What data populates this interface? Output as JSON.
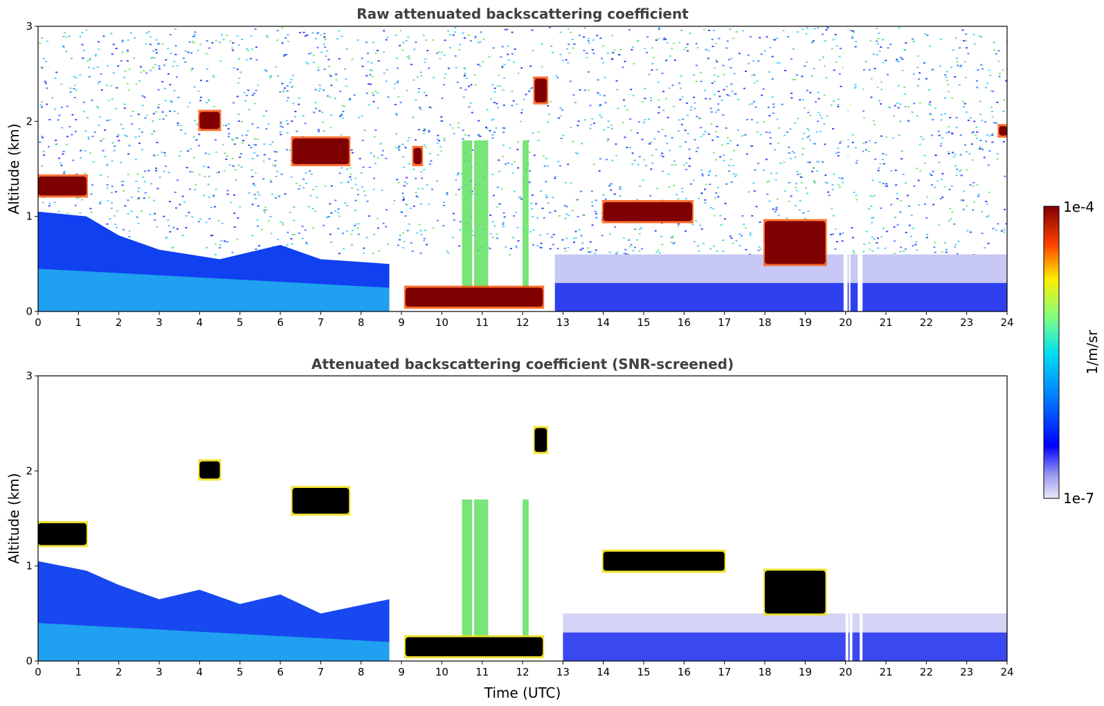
{
  "chart_data": [
    {
      "type": "heatmap",
      "title": "Raw attenuated backscattering coefficient",
      "xlabel": "",
      "ylabel": "Altitude (km)",
      "xlim": [
        0,
        24
      ],
      "ylim": [
        0,
        3
      ],
      "x_ticks": [
        "0",
        "1",
        "2",
        "3",
        "4",
        "5",
        "6",
        "7",
        "8",
        "9",
        "10",
        "11",
        "12",
        "13",
        "14",
        "15",
        "16",
        "17",
        "18",
        "19",
        "20",
        "21",
        "22",
        "23",
        "24"
      ],
      "y_ticks": [
        "0",
        "1",
        "2",
        "3"
      ],
      "data_gaps_hours": [
        [
          8.7,
          8.82
        ],
        [
          19.95,
          20.05
        ],
        [
          20.08,
          20.12
        ],
        [
          20.3,
          20.42
        ]
      ],
      "features": [
        {
          "kind": "cloud",
          "t0": 0.0,
          "t1": 1.2,
          "alt0": 1.22,
          "alt1": 1.42
        },
        {
          "kind": "cloud",
          "t0": 4.0,
          "t1": 4.5,
          "alt0": 1.92,
          "alt1": 2.1
        },
        {
          "kind": "cloud",
          "t0": 6.3,
          "t1": 7.7,
          "alt0": 1.55,
          "alt1": 1.82
        },
        {
          "kind": "cloud",
          "t0": 9.3,
          "t1": 9.5,
          "alt0": 1.55,
          "alt1": 1.72
        },
        {
          "kind": "cloud",
          "t0": 12.3,
          "t1": 12.6,
          "alt0": 2.2,
          "alt1": 2.45
        },
        {
          "kind": "fog",
          "t0": 9.1,
          "t1": 12.5,
          "alt0": 0.05,
          "alt1": 0.25
        },
        {
          "kind": "cloud",
          "t0": 14.0,
          "t1": 16.2,
          "alt0": 0.95,
          "alt1": 1.15
        },
        {
          "kind": "cloud",
          "t0": 18.0,
          "t1": 19.5,
          "alt0": 0.5,
          "alt1": 0.95
        },
        {
          "kind": "cloud",
          "t0": 23.8,
          "t1": 24.0,
          "alt0": 1.85,
          "alt1": 1.95
        }
      ]
    },
    {
      "type": "heatmap",
      "title": "Attenuated backscattering coefficient (SNR-screened)",
      "xlabel": "Time (UTC)",
      "ylabel": "Altitude (km)",
      "xlim": [
        0,
        24
      ],
      "ylim": [
        0,
        3
      ],
      "x_ticks": [
        "0",
        "1",
        "2",
        "3",
        "4",
        "5",
        "6",
        "7",
        "8",
        "9",
        "10",
        "11",
        "12",
        "13",
        "14",
        "15",
        "16",
        "17",
        "18",
        "19",
        "20",
        "21",
        "22",
        "23",
        "24"
      ],
      "y_ticks": [
        "0",
        "1",
        "2",
        "3"
      ],
      "screening": "SNR",
      "features": [
        {
          "kind": "cloud",
          "t0": 0.0,
          "t1": 1.2,
          "alt0": 1.22,
          "alt1": 1.45
        },
        {
          "kind": "boundary_layer",
          "t0": 0.0,
          "t1": 8.7,
          "alt0": 0.0,
          "alt1": 0.7
        },
        {
          "kind": "cloud",
          "t0": 4.0,
          "t1": 4.5,
          "alt0": 1.92,
          "alt1": 2.1
        },
        {
          "kind": "cloud",
          "t0": 6.3,
          "t1": 7.7,
          "alt0": 1.55,
          "alt1": 1.82
        },
        {
          "kind": "cloud",
          "t0": 12.3,
          "t1": 12.6,
          "alt0": 2.2,
          "alt1": 2.45
        },
        {
          "kind": "fog",
          "t0": 9.1,
          "t1": 12.5,
          "alt0": 0.05,
          "alt1": 0.25
        },
        {
          "kind": "cloud",
          "t0": 14.0,
          "t1": 17.0,
          "alt0": 0.95,
          "alt1": 1.15
        },
        {
          "kind": "cloud",
          "t0": 18.0,
          "t1": 19.5,
          "alt0": 0.5,
          "alt1": 0.95
        },
        {
          "kind": "low_signal",
          "t0": 13.0,
          "t1": 24.0,
          "alt0": 0.0,
          "alt1": 0.5
        }
      ]
    }
  ],
  "colorbar": {
    "label": "1/m/sr",
    "max_label": "1e-4",
    "min_label": "1e-7",
    "colormap": "jet",
    "scale": "log"
  },
  "colors": {
    "low_pale": "#e8e8f8",
    "blue": "#0a14f0",
    "cyan": "#20d0f0",
    "green": "#60e060",
    "yellow": "#f0e020",
    "red": "#c00000",
    "dark_red": "#7f0000",
    "title_gray": "#404040"
  }
}
